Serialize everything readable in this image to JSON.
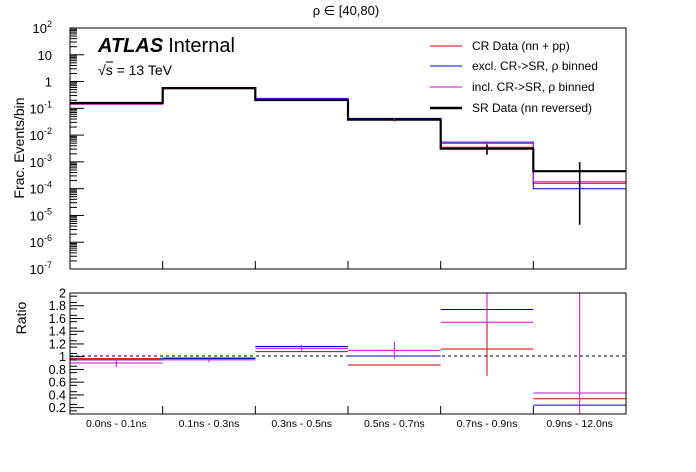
{
  "chart_data": [
    {
      "type": "line",
      "panel": "main",
      "title": "ρ ∈ [40,80)",
      "ylabel": "Frac. Events/bin",
      "yscale": "log",
      "ylim": [
        1e-07,
        100
      ],
      "yticks": [
        {
          "value": 1e-07,
          "base": "10",
          "exp": "-7"
        },
        {
          "value": 1e-06,
          "base": "10",
          "exp": "-6"
        },
        {
          "value": 1e-05,
          "base": "10",
          "exp": "-5"
        },
        {
          "value": 0.0001,
          "base": "10",
          "exp": "-4"
        },
        {
          "value": 0.001,
          "base": "10",
          "exp": "-3"
        },
        {
          "value": 0.01,
          "base": "10",
          "exp": "-2"
        },
        {
          "value": 0.1,
          "base": "10",
          "exp": "-1"
        },
        {
          "value": 1,
          "base": "1",
          "exp": ""
        },
        {
          "value": 10,
          "base": "10",
          "exp": ""
        },
        {
          "value": 100,
          "base": "10",
          "exp": "2"
        }
      ],
      "categories": [
        "0.0ns - 0.1ns",
        "0.1ns - 0.3ns",
        "0.3ns - 0.5ns",
        "0.5ns - 0.7ns",
        "0.7ns - 0.9ns",
        "0.9ns - 12.0ns"
      ],
      "series": [
        {
          "name": "CR Data (nn + pp)",
          "color": "#cc0000",
          "values": [
            0.155,
            0.56,
            0.22,
            0.04,
            0.0035,
            0.00016
          ]
        },
        {
          "name": "excl. CR->SR, ρ binned",
          "color": "#0000cc",
          "values": [
            0.148,
            0.55,
            0.235,
            0.042,
            0.0055,
            0.0001
          ]
        },
        {
          "name": "incl. CR->SR, ρ binned",
          "color": "#dd00dd",
          "values": [
            0.142,
            0.54,
            0.225,
            0.037,
            0.0049,
            0.00018
          ]
        },
        {
          "name": "SR Data (nn reversed)",
          "color": "#000000",
          "values": [
            0.158,
            0.57,
            0.205,
            0.038,
            0.0031,
            0.00045
          ]
        }
      ],
      "annotations": {
        "atlas": "ATLAS",
        "atlas_suffix": "Internal",
        "energy_root": "√",
        "energy_text": "s = 13 TeV"
      }
    },
    {
      "type": "line",
      "panel": "ratio",
      "ylabel": "Ratio",
      "ylim": [
        0.1,
        2.0
      ],
      "yticks": [
        "0.2",
        "0.4",
        "0.6",
        "0.8",
        "1",
        "1.2",
        "1.4",
        "1.6",
        "1.8",
        "2"
      ],
      "reference_line": 1,
      "categories": [
        "0.0ns - 0.1ns",
        "0.1ns - 0.3ns",
        "0.3ns - 0.5ns",
        "0.5ns - 0.7ns",
        "0.7ns - 0.9ns",
        "0.9ns - 12.0ns"
      ],
      "series": [
        {
          "name": "CR Data (nn + pp)",
          "color": "#cc0000",
          "values": [
            0.97,
            0.98,
            1.08,
            0.87,
            1.12,
            0.34
          ]
        },
        {
          "name": "excl. CR->SR, ρ binned",
          "color": "#0000cc",
          "values": [
            0.95,
            0.97,
            1.16,
            1.01,
            1.74,
            0.24
          ]
        },
        {
          "name": "incl. CR->SR, ρ binned",
          "color": "#dd00dd",
          "values": [
            0.9,
            0.95,
            1.13,
            1.1,
            1.54,
            0.43
          ]
        }
      ]
    }
  ]
}
